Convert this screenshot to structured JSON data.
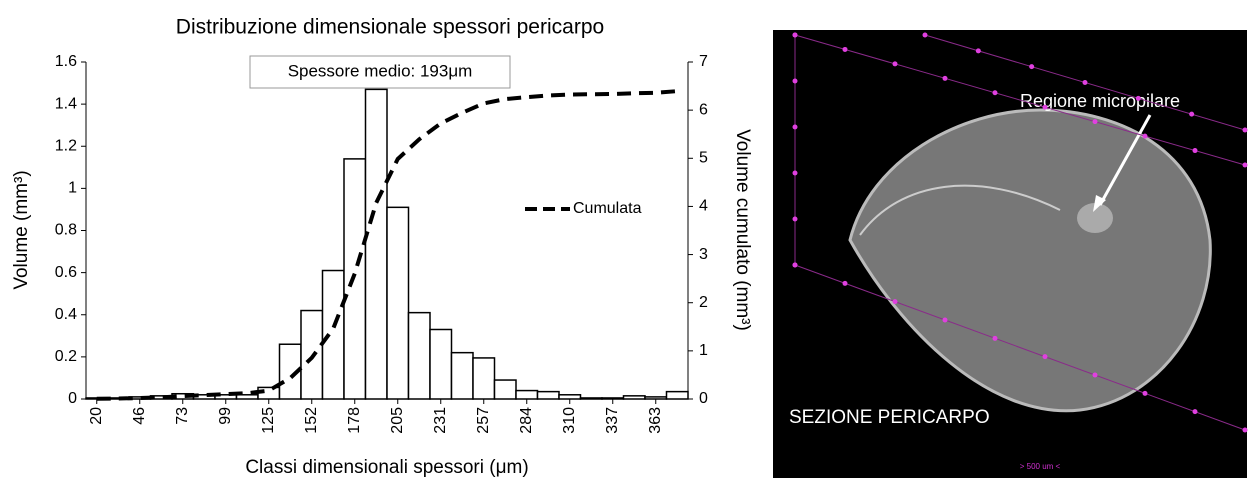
{
  "chart_data": {
    "type": "bar",
    "title": "Distribuzione dimensionale spessori pericarpo",
    "x_label": "Classi dimensionali spessori (μm)",
    "y_label": "Volume (mm³)",
    "y2_label": "Volume  cumulato (mm³)",
    "annotation": "Spessore medio: 193μm",
    "categories": [
      "20",
      null,
      "46",
      null,
      "73",
      null,
      "99",
      null,
      "125",
      null,
      "152",
      null,
      "178",
      null,
      "205",
      null,
      "231",
      null,
      "257",
      null,
      "284",
      null,
      "310",
      null,
      "337",
      null,
      "363",
      null
    ],
    "values": [
      0.005,
      0.005,
      0.01,
      0.015,
      0.025,
      0.02,
      0.02,
      0.02,
      0.055,
      0.26,
      0.42,
      0.61,
      1.14,
      1.47,
      0.91,
      0.41,
      0.33,
      0.22,
      0.195,
      0.09,
      0.04,
      0.035,
      0.02,
      0.005,
      0.005,
      0.015,
      0.01,
      0.035
    ],
    "color": "#ffffff",
    "series": [
      {
        "name": "Cumulata",
        "color": "#000000",
        "axis": "y2",
        "dashed": true,
        "values": [
          0.005,
          0.01,
          0.02,
          0.035,
          0.06,
          0.08,
          0.1,
          0.12,
          0.175,
          0.435,
          0.855,
          1.465,
          2.605,
          4.075,
          4.985,
          5.395,
          5.725,
          5.945,
          6.14,
          6.23,
          6.27,
          6.305,
          6.325,
          6.33,
          6.335,
          6.35,
          6.36,
          6.395
        ]
      }
    ],
    "ylim": [
      0,
      1.6
    ],
    "yticks": [
      0,
      0.2,
      0.4,
      0.6,
      0.8,
      1,
      1.2,
      1.4,
      1.6
    ],
    "y2lim": [
      0,
      7
    ],
    "y2ticks": [
      0,
      1,
      2,
      3,
      4,
      5,
      6,
      7
    ],
    "grid": false,
    "legend": "right"
  },
  "image": {
    "label": "Regione micropilare",
    "caption": "SEZIONE PERICARPO",
    "scale": "> 500 um <"
  }
}
